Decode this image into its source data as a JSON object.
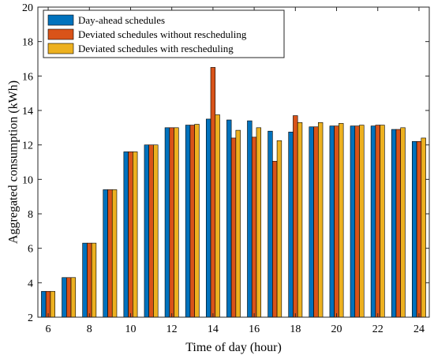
{
  "chart_data": {
    "type": "bar",
    "xlabel": "Time of day (hour)",
    "ylabel": "Aggregated consumption (kWh)",
    "ylim": [
      2,
      20
    ],
    "yticks": [
      2,
      4,
      6,
      8,
      10,
      12,
      14,
      16,
      18,
      20
    ],
    "xlim": [
      5.5,
      24.5
    ],
    "xticks": [
      6,
      8,
      10,
      12,
      14,
      16,
      18,
      20,
      22,
      24
    ],
    "x": [
      6,
      7,
      8,
      9,
      10,
      11,
      12,
      13,
      14,
      15,
      16,
      17,
      18,
      19,
      20,
      21,
      22,
      23,
      24
    ],
    "legend_position": "top-left",
    "grid": false,
    "series": [
      {
        "name": "Day-ahead schedules",
        "color": "#0072BD",
        "values": [
          3.5,
          4.3,
          6.3,
          9.4,
          11.6,
          12.0,
          13.0,
          13.15,
          13.5,
          13.45,
          13.4,
          12.8,
          12.75,
          13.05,
          13.1,
          13.1,
          13.1,
          12.9,
          12.2
        ]
      },
      {
        "name": "Deviated schedules without rescheduling",
        "color": "#D95319",
        "values": [
          3.5,
          4.3,
          6.3,
          9.4,
          11.6,
          12.0,
          13.0,
          13.15,
          16.5,
          12.4,
          12.45,
          11.05,
          13.7,
          13.05,
          13.1,
          13.1,
          13.15,
          12.9,
          12.2
        ]
      },
      {
        "name": "Deviated schedules with rescheduling",
        "color": "#EDB120",
        "values": [
          3.5,
          4.3,
          6.3,
          9.4,
          11.6,
          12.0,
          13.0,
          13.2,
          13.75,
          12.85,
          13.0,
          12.25,
          13.3,
          13.3,
          13.25,
          13.15,
          13.15,
          13.0,
          12.4
        ]
      }
    ]
  }
}
